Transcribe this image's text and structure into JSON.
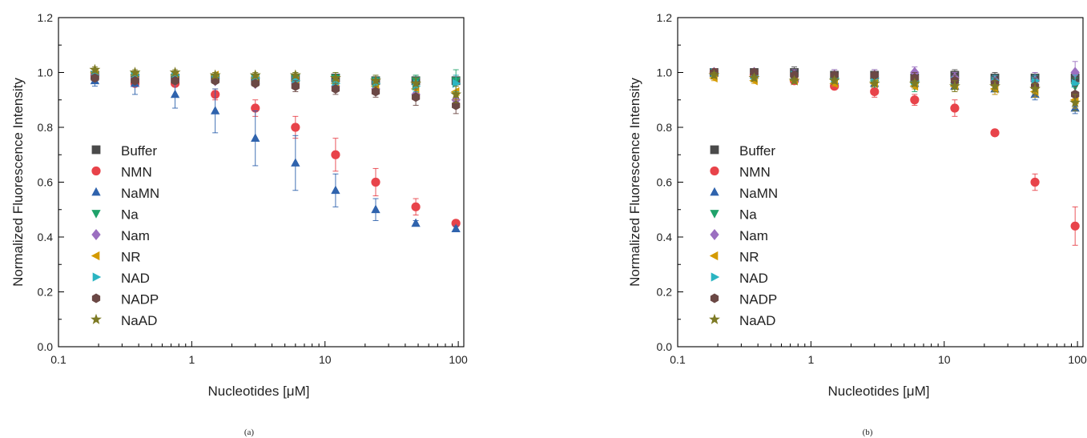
{
  "chart_data": [
    {
      "type": "scatter",
      "panel_label": "(a)",
      "xlabel": "Nucleotides [μM]",
      "ylabel": "Normalized Fluorescence Intensity",
      "xscale": "log",
      "xlim": [
        0.1,
        110
      ],
      "ylim": [
        0.0,
        1.2
      ],
      "xticks": [
        {
          "v": 0.1,
          "label": "0.1"
        },
        {
          "v": 1,
          "label": "1"
        },
        {
          "v": 10,
          "label": "10"
        },
        {
          "v": 100,
          "label": "100"
        }
      ],
      "yticks": [
        {
          "v": 0.0,
          "label": "0.0"
        },
        {
          "v": 0.2,
          "label": "0.2"
        },
        {
          "v": 0.4,
          "label": "0.4"
        },
        {
          "v": 0.6,
          "label": "0.6"
        },
        {
          "v": 0.8,
          "label": "0.8"
        },
        {
          "v": 1.0,
          "label": "1.0"
        },
        {
          "v": 1.2,
          "label": "1.2"
        }
      ],
      "grid": false,
      "legend_position": "lower-left",
      "x": [
        0.1875,
        0.375,
        0.75,
        1.5,
        3,
        6,
        12,
        24,
        48,
        96
      ],
      "series": [
        {
          "name": "Buffer",
          "marker": "square",
          "color": "#4a4a4a",
          "values": [
            0.99,
            0.98,
            0.98,
            0.98,
            0.97,
            0.98,
            0.98,
            0.97,
            0.97,
            0.97
          ],
          "errors": [
            0.01,
            0.01,
            0.01,
            0.01,
            0.01,
            0.01,
            0.02,
            0.02,
            0.02,
            0.02
          ]
        },
        {
          "name": "NMN",
          "marker": "circle",
          "color": "#e8434a",
          "values": [
            0.99,
            0.96,
            0.96,
            0.92,
            0.87,
            0.8,
            0.7,
            0.6,
            0.51,
            0.45
          ],
          "errors": [
            0.01,
            0.01,
            0.01,
            0.02,
            0.03,
            0.04,
            0.06,
            0.05,
            0.03,
            0.01
          ]
        },
        {
          "name": "NaMN",
          "marker": "triangle-up",
          "color": "#2f63ad",
          "values": [
            0.97,
            0.96,
            0.92,
            0.86,
            0.76,
            0.67,
            0.57,
            0.5,
            0.45,
            0.43
          ],
          "errors": [
            0.02,
            0.04,
            0.05,
            0.08,
            0.1,
            0.1,
            0.06,
            0.04,
            0.01,
            0.01
          ]
        },
        {
          "name": "Na",
          "marker": "triangle-down",
          "color": "#1fa26a",
          "values": [
            0.99,
            0.99,
            0.98,
            0.98,
            0.98,
            0.98,
            0.98,
            0.97,
            0.97,
            0.97
          ],
          "errors": [
            0.01,
            0.01,
            0.01,
            0.01,
            0.01,
            0.02,
            0.02,
            0.02,
            0.02,
            0.04
          ]
        },
        {
          "name": "Nam",
          "marker": "diamond",
          "color": "#9b6fc0",
          "values": [
            0.99,
            0.98,
            0.97,
            0.97,
            0.96,
            0.96,
            0.95,
            0.94,
            0.92,
            0.9
          ],
          "errors": [
            0.01,
            0.01,
            0.01,
            0.01,
            0.01,
            0.02,
            0.02,
            0.02,
            0.02,
            0.03
          ]
        },
        {
          "name": "NR",
          "marker": "triangle-left",
          "color": "#d49a00",
          "values": [
            1.0,
            0.99,
            0.99,
            0.99,
            0.98,
            0.97,
            0.96,
            0.95,
            0.94,
            0.93
          ],
          "errors": [
            0.01,
            0.01,
            0.01,
            0.01,
            0.01,
            0.02,
            0.02,
            0.02,
            0.02,
            0.03
          ]
        },
        {
          "name": "NAD",
          "marker": "triangle-right",
          "color": "#2bb5c2",
          "values": [
            0.99,
            0.99,
            0.99,
            0.98,
            0.98,
            0.97,
            0.96,
            0.96,
            0.95,
            0.96
          ],
          "errors": [
            0.01,
            0.01,
            0.01,
            0.01,
            0.01,
            0.01,
            0.02,
            0.02,
            0.02,
            0.03
          ]
        },
        {
          "name": "NADP",
          "marker": "hexagon",
          "color": "#6b4845",
          "values": [
            0.98,
            0.97,
            0.97,
            0.97,
            0.96,
            0.95,
            0.94,
            0.93,
            0.91,
            0.88
          ],
          "errors": [
            0.01,
            0.01,
            0.01,
            0.01,
            0.01,
            0.02,
            0.02,
            0.02,
            0.03,
            0.03
          ]
        },
        {
          "name": "NaAD",
          "marker": "star",
          "color": "#7d7a24",
          "values": [
            1.01,
            1.0,
            1.0,
            0.99,
            0.99,
            0.99,
            0.98,
            0.97,
            0.96,
            0.92
          ],
          "errors": [
            0.01,
            0.01,
            0.01,
            0.01,
            0.01,
            0.01,
            0.02,
            0.02,
            0.02,
            0.03
          ]
        }
      ]
    },
    {
      "type": "scatter",
      "panel_label": "(b)",
      "xlabel": "Nucleotides [μM]",
      "ylabel": "Normalized Fluorescence Intensity",
      "xscale": "log",
      "xlim": [
        0.1,
        110
      ],
      "ylim": [
        0.0,
        1.2
      ],
      "xticks": [
        {
          "v": 0.1,
          "label": "0.1"
        },
        {
          "v": 1,
          "label": "1"
        },
        {
          "v": 10,
          "label": "10"
        },
        {
          "v": 100,
          "label": "100"
        }
      ],
      "yticks": [
        {
          "v": 0.0,
          "label": "0.0"
        },
        {
          "v": 0.2,
          "label": "0.2"
        },
        {
          "v": 0.4,
          "label": "0.4"
        },
        {
          "v": 0.6,
          "label": "0.6"
        },
        {
          "v": 0.8,
          "label": "0.8"
        },
        {
          "v": 1.0,
          "label": "1.0"
        },
        {
          "v": 1.2,
          "label": "1.2"
        }
      ],
      "grid": false,
      "legend_position": "lower-left",
      "x": [
        0.1875,
        0.375,
        0.75,
        1.5,
        3,
        6,
        12,
        24,
        48,
        96
      ],
      "series": [
        {
          "name": "Buffer",
          "marker": "square",
          "color": "#4a4a4a",
          "values": [
            1.0,
            1.0,
            1.0,
            0.99,
            0.99,
            0.98,
            0.99,
            0.98,
            0.98,
            0.98
          ],
          "errors": [
            0.01,
            0.01,
            0.02,
            0.02,
            0.02,
            0.02,
            0.02,
            0.02,
            0.02,
            0.02
          ]
        },
        {
          "name": "NMN",
          "marker": "circle",
          "color": "#e8434a",
          "values": [
            1.0,
            0.99,
            0.97,
            0.95,
            0.93,
            0.9,
            0.87,
            0.78,
            0.6,
            0.44
          ],
          "errors": [
            0.01,
            0.01,
            0.01,
            0.01,
            0.02,
            0.02,
            0.03,
            0.01,
            0.03,
            0.07
          ]
        },
        {
          "name": "NaMN",
          "marker": "triangle-up",
          "color": "#2f63ad",
          "values": [
            1.0,
            0.99,
            0.98,
            0.97,
            0.96,
            0.96,
            0.95,
            0.94,
            0.92,
            0.87
          ],
          "errors": [
            0.01,
            0.01,
            0.01,
            0.01,
            0.01,
            0.02,
            0.02,
            0.02,
            0.02,
            0.02
          ]
        },
        {
          "name": "Na",
          "marker": "triangle-down",
          "color": "#1fa26a",
          "values": [
            0.99,
            0.99,
            0.98,
            0.97,
            0.96,
            0.95,
            0.95,
            0.95,
            0.96,
            0.95
          ],
          "errors": [
            0.01,
            0.01,
            0.01,
            0.01,
            0.01,
            0.02,
            0.02,
            0.02,
            0.02,
            0.03
          ]
        },
        {
          "name": "Nam",
          "marker": "diamond",
          "color": "#9b6fc0",
          "values": [
            1.0,
            1.0,
            0.99,
            0.99,
            0.99,
            1.0,
            0.98,
            0.97,
            0.97,
            1.0
          ],
          "errors": [
            0.01,
            0.01,
            0.02,
            0.02,
            0.02,
            0.02,
            0.02,
            0.02,
            0.03,
            0.04
          ]
        },
        {
          "name": "NR",
          "marker": "triangle-left",
          "color": "#d49a00",
          "values": [
            0.98,
            0.97,
            0.97,
            0.96,
            0.96,
            0.95,
            0.95,
            0.94,
            0.93,
            0.9
          ],
          "errors": [
            0.01,
            0.01,
            0.01,
            0.01,
            0.01,
            0.01,
            0.02,
            0.02,
            0.02,
            0.03
          ]
        },
        {
          "name": "NAD",
          "marker": "triangle-right",
          "color": "#2bb5c2",
          "values": [
            1.0,
            0.99,
            0.99,
            0.98,
            0.98,
            0.97,
            0.97,
            0.97,
            0.97,
            0.96
          ],
          "errors": [
            0.01,
            0.01,
            0.01,
            0.01,
            0.01,
            0.02,
            0.02,
            0.02,
            0.02,
            0.03
          ]
        },
        {
          "name": "NADP",
          "marker": "hexagon",
          "color": "#6b4845",
          "values": [
            1.0,
            1.0,
            0.99,
            0.99,
            0.99,
            0.98,
            0.97,
            0.96,
            0.95,
            0.92
          ],
          "errors": [
            0.01,
            0.01,
            0.01,
            0.01,
            0.01,
            0.02,
            0.02,
            0.02,
            0.03,
            0.03
          ]
        },
        {
          "name": "NaAD",
          "marker": "star",
          "color": "#7d7a24",
          "values": [
            0.99,
            0.98,
            0.97,
            0.97,
            0.96,
            0.96,
            0.95,
            0.95,
            0.94,
            0.89
          ],
          "errors": [
            0.01,
            0.01,
            0.01,
            0.01,
            0.01,
            0.01,
            0.02,
            0.02,
            0.02,
            0.03
          ]
        }
      ]
    }
  ]
}
